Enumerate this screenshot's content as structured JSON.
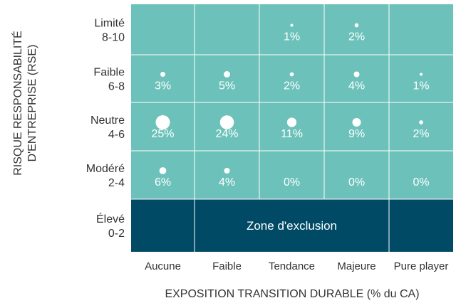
{
  "colors": {
    "teal": "#6cc2ba",
    "dark": "#004a66",
    "grid_line": "#ffffff",
    "marker": "#ffffff",
    "cell_text": "#ffffff",
    "axis_text": "#333333"
  },
  "chart_data": {
    "type": "heatmap",
    "x_categories": [
      "Aucune",
      "Faible",
      "Tendance",
      "Majeure",
      "Pure player"
    ],
    "y_categories": [
      {
        "line1": "Limité",
        "line2": "8-10"
      },
      {
        "line1": "Faible",
        "line2": "6-8"
      },
      {
        "line1": "Neutre",
        "line2": "4-6"
      },
      {
        "line1": "Modéré",
        "line2": "2-4"
      },
      {
        "line1": "Élevé",
        "line2": "0-2"
      }
    ],
    "xlabel": "EXPOSITION TRANSITION DURABLE (% du CA)",
    "ylabel": [
      "RISQUE RESPONSABILITÉ",
      "D'ENTREPRISE (RSE)"
    ],
    "values": [
      [
        null,
        null,
        1,
        2,
        null
      ],
      [
        3,
        5,
        2,
        4,
        1
      ],
      [
        25,
        24,
        11,
        9,
        2
      ],
      [
        6,
        4,
        0,
        0,
        0
      ],
      [
        null,
        null,
        null,
        null,
        null
      ]
    ],
    "exclusion_zone": {
      "label": "Zone d'exclusion",
      "row": 4,
      "col_start": 1,
      "col_end": 3
    },
    "bubble_size_encodes": "percentage"
  }
}
